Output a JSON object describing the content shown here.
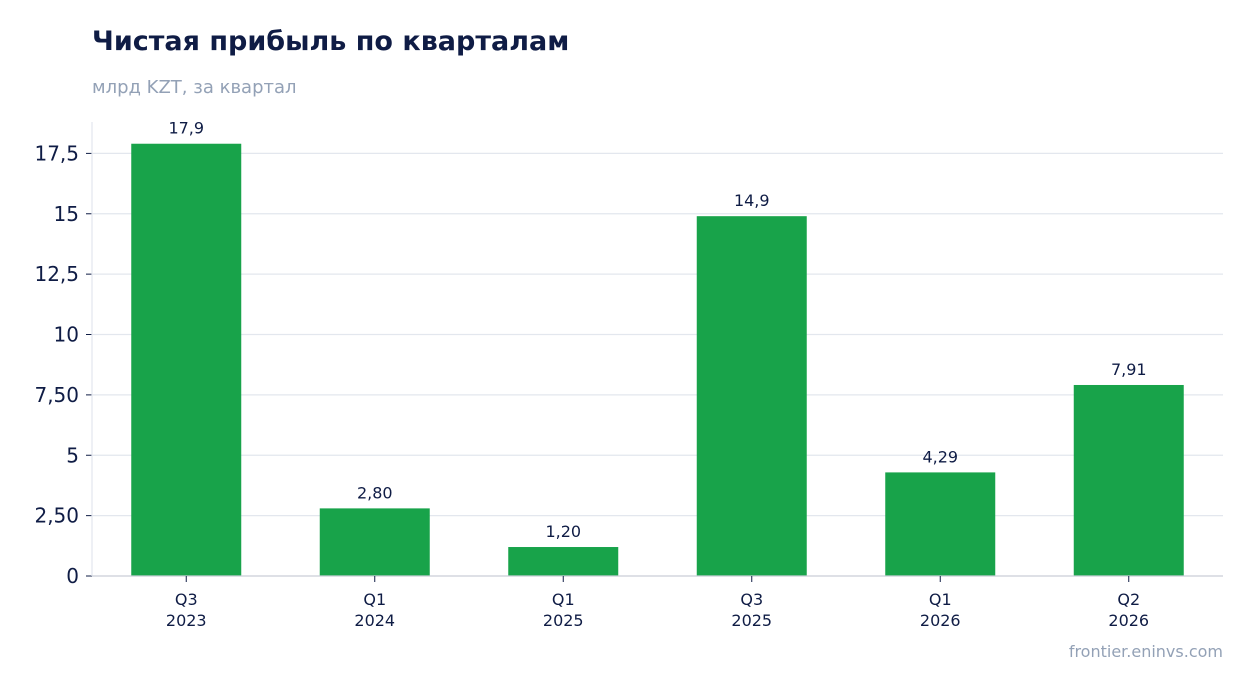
{
  "header": {
    "title": "Чистая прибыль по кварталам",
    "subtitle": "млрд KZT, за квартал"
  },
  "footer": {
    "source": "frontier.eninvs.com"
  },
  "colors": {
    "bar": "#18a34a",
    "grid": "#e3e7ee",
    "axis": "#c9ced8",
    "title": "#0f1c45",
    "muted": "#93a1b6"
  },
  "chart_data": {
    "type": "bar",
    "title": "Чистая прибыль по кварталам",
    "subtitle": "млрд KZT, за квартал",
    "categories": [
      [
        "Q3",
        "2023"
      ],
      [
        "Q1",
        "2024"
      ],
      [
        "Q1",
        "2025"
      ],
      [
        "Q3",
        "2025"
      ],
      [
        "Q1",
        "2026"
      ],
      [
        "Q2",
        "2026"
      ]
    ],
    "values": [
      17.9,
      2.8,
      1.2,
      14.9,
      4.29,
      7.91
    ],
    "data_labels": [
      "17,9",
      "2,80",
      "1,20",
      "14,9",
      "4,29",
      "7,91"
    ],
    "yticks": [
      0,
      2.5,
      5,
      7.5,
      10,
      12.5,
      15,
      17.5
    ],
    "ytick_labels": [
      "0",
      "2,50",
      "5",
      "7,50",
      "10",
      "12,5",
      "15",
      "17,5"
    ],
    "ylim": [
      0,
      18.8
    ],
    "grid": true,
    "legend": "none"
  }
}
